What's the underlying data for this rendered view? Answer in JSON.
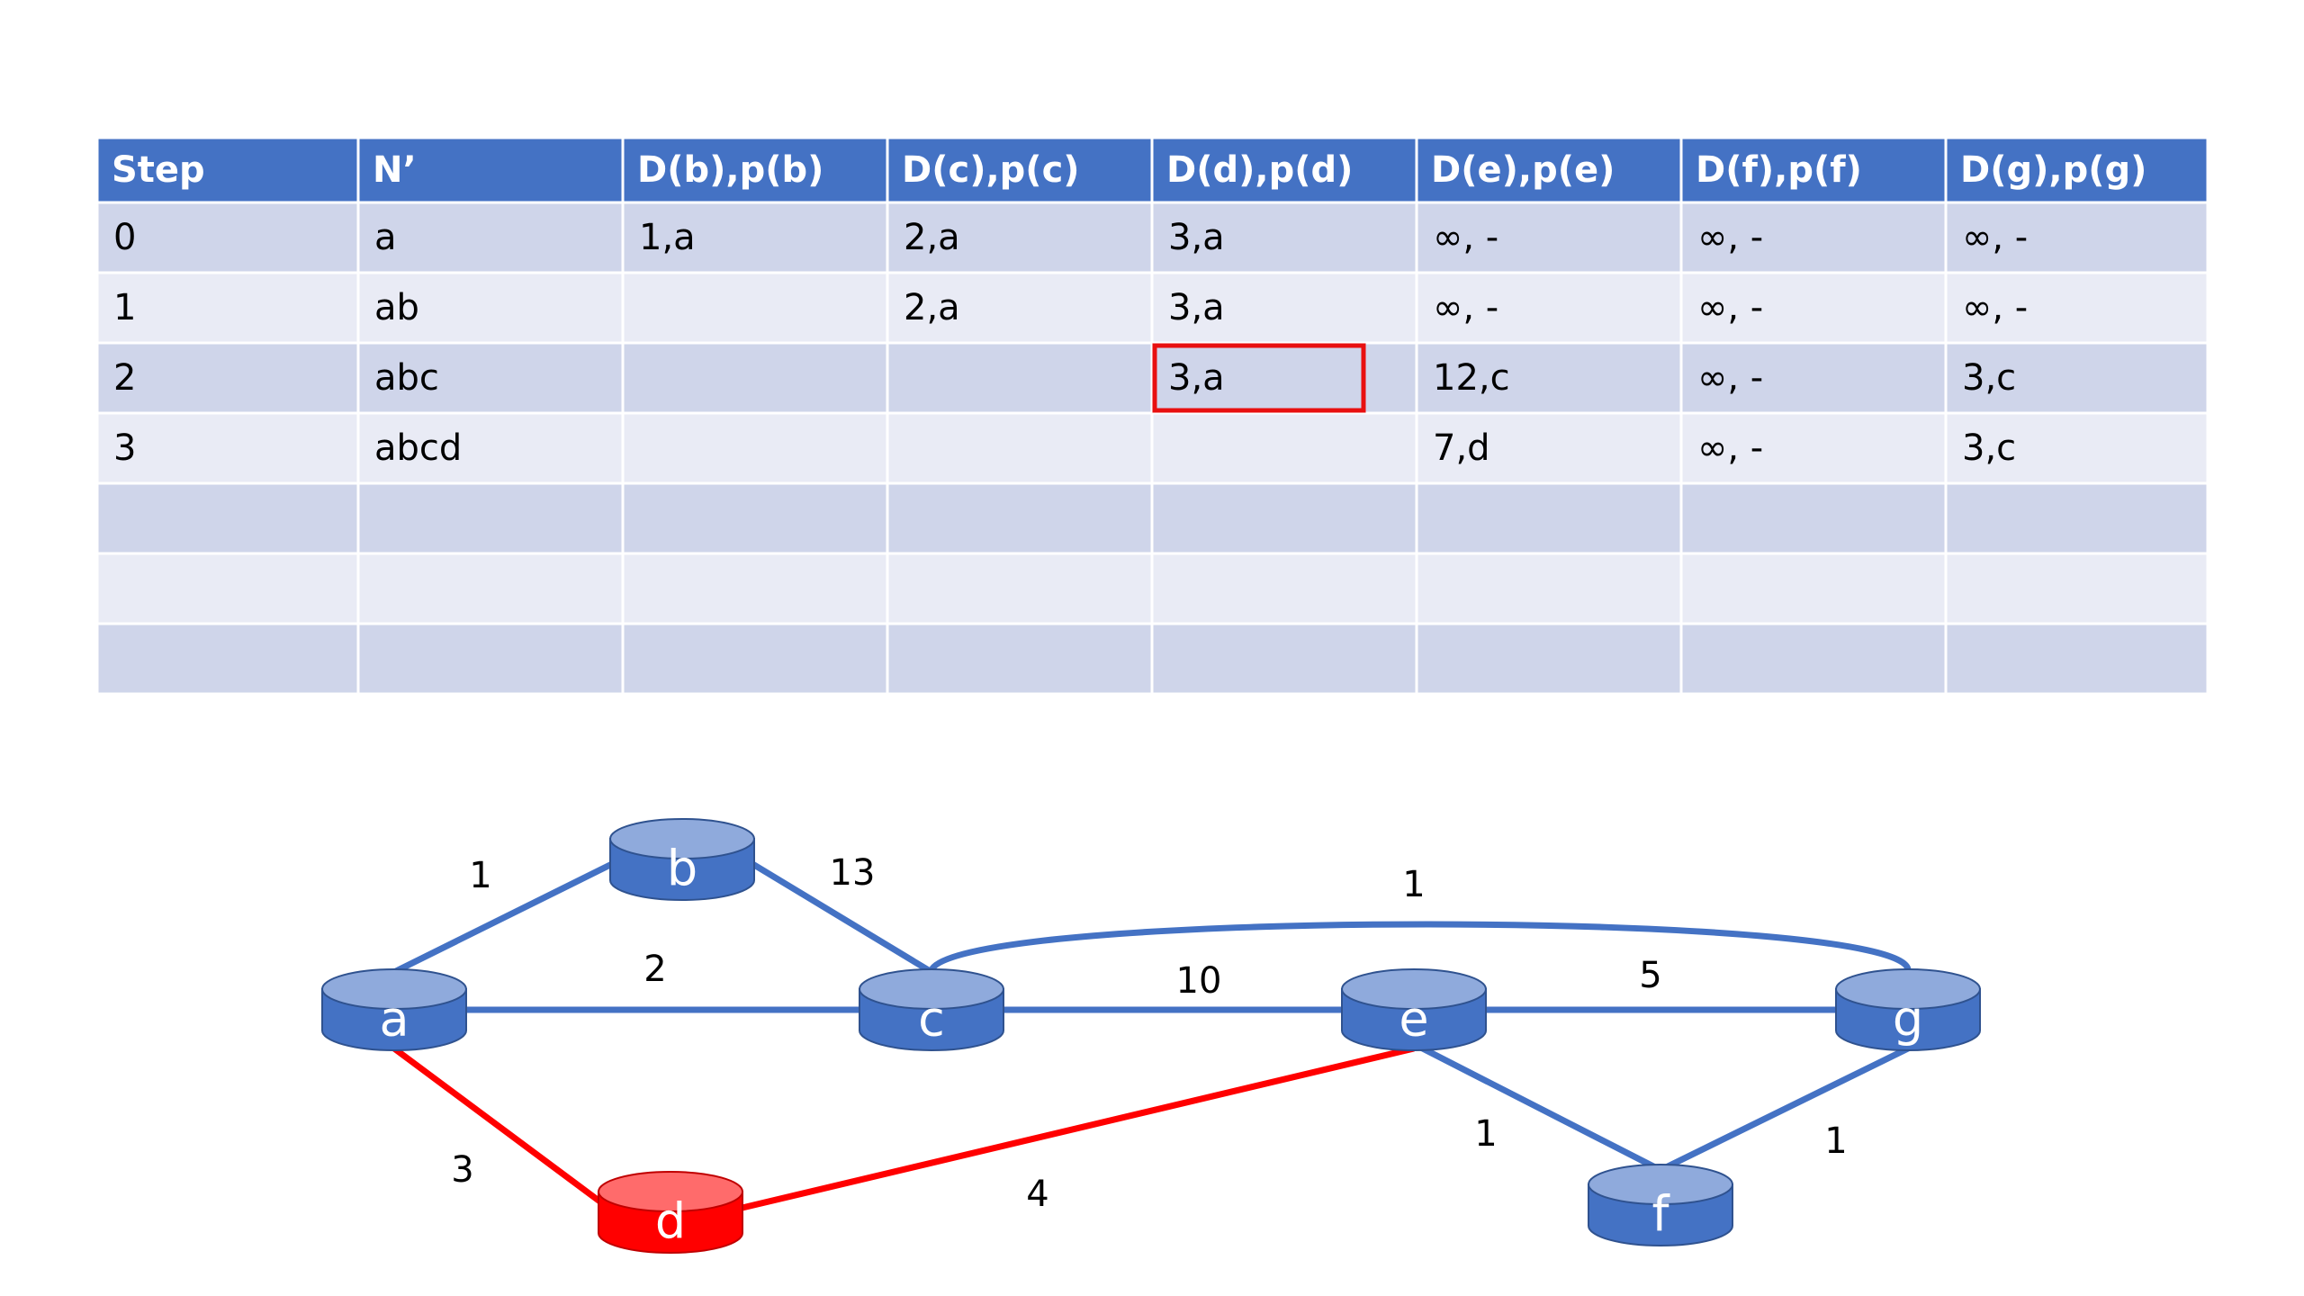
{
  "table": {
    "header": [
      "Step",
      "N’",
      "D(b),p(b)",
      "D(c),p(c)",
      "D(d),p(d)",
      "D(e),p(e)",
      "D(f),p(f)",
      "D(g),p(g)"
    ],
    "rows": [
      [
        "0",
        "a",
        "1,a",
        "2,a",
        "3,a",
        "∞, -",
        "∞, -",
        "∞, -"
      ],
      [
        "1",
        "ab",
        null,
        "2,a",
        "3,a",
        "∞, -",
        "∞, -",
        "∞, -"
      ],
      [
        "2",
        "abc",
        null,
        null,
        "3,a",
        "12,c",
        "∞, -",
        "3,c"
      ],
      [
        "3",
        "abcd",
        null,
        null,
        null,
        "7,d",
        "∞, -",
        "3,c"
      ],
      [
        null,
        null,
        null,
        null,
        null,
        null,
        null,
        null
      ],
      [
        null,
        null,
        null,
        null,
        null,
        null,
        null,
        null
      ],
      [
        null,
        null,
        null,
        null,
        null,
        null,
        null,
        null
      ]
    ]
  },
  "nodes": [
    {
      "label": "a"
    },
    {
      "label": "b"
    },
    {
      "label": "c"
    },
    {
      "label": "d"
    },
    {
      "label": "e"
    },
    {
      "label": "f"
    },
    {
      "label": "g"
    }
  ],
  "edges": [
    {
      "label": 1
    },
    {
      "label": 13
    },
    {
      "label": 2
    },
    {
      "label": 10
    },
    {
      "label": 5
    },
    {
      "label": 1
    },
    {
      "label": 3
    },
    {
      "label": 4
    },
    {
      "label": 1
    },
    {
      "label": 1
    }
  ]
}
